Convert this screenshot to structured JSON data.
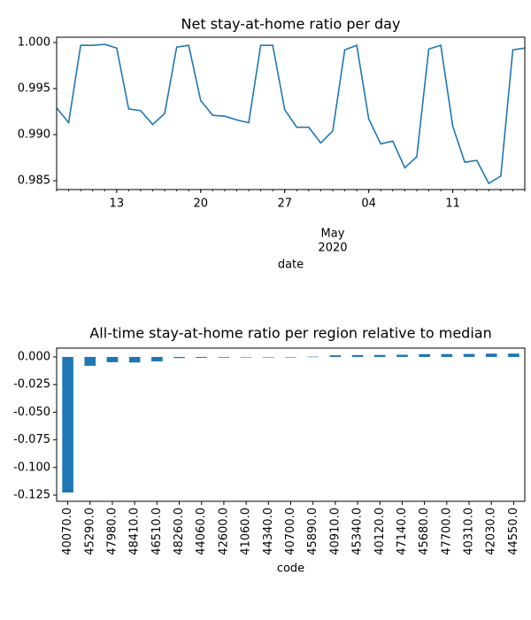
{
  "chart_data": [
    {
      "type": "line",
      "title": "Net stay-at-home ratio per day",
      "xlabel": "date",
      "x": [
        "2020-04-08",
        "2020-04-09",
        "2020-04-10",
        "2020-04-11",
        "2020-04-12",
        "2020-04-13",
        "2020-04-14",
        "2020-04-15",
        "2020-04-16",
        "2020-04-17",
        "2020-04-18",
        "2020-04-19",
        "2020-04-20",
        "2020-04-21",
        "2020-04-22",
        "2020-04-23",
        "2020-04-24",
        "2020-04-25",
        "2020-04-26",
        "2020-04-27",
        "2020-04-28",
        "2020-04-29",
        "2020-04-30",
        "2020-05-01",
        "2020-05-02",
        "2020-05-03",
        "2020-05-04",
        "2020-05-05",
        "2020-05-06",
        "2020-05-07",
        "2020-05-08",
        "2020-05-09",
        "2020-05-10",
        "2020-05-11",
        "2020-05-12",
        "2020-05-13",
        "2020-05-14",
        "2020-05-15",
        "2020-05-16",
        "2020-05-17"
      ],
      "values": [
        0.9929,
        0.9913,
        0.9997,
        0.9997,
        0.9998,
        0.9994,
        0.9928,
        0.9926,
        0.9911,
        0.9923,
        0.9995,
        0.9997,
        0.9937,
        0.9921,
        0.992,
        0.9916,
        0.9913,
        0.9997,
        0.9997,
        0.9927,
        0.9908,
        0.9908,
        0.9891,
        0.9904,
        0.9992,
        0.9997,
        0.9917,
        0.989,
        0.9893,
        0.9864,
        0.9876,
        0.9993,
        0.9997,
        0.9909,
        0.987,
        0.9872,
        0.9847,
        0.9855,
        0.9992,
        0.9994
      ],
      "color": "#1f77b4",
      "xlim": [
        "2020-04-08",
        "2020-05-17"
      ],
      "xticks": [
        {
          "value": "2020-04-13",
          "label": "13"
        },
        {
          "value": "2020-04-20",
          "label": "20"
        },
        {
          "value": "2020-04-27",
          "label": "27"
        },
        {
          "value": "2020-05-01",
          "label": [
            "May",
            "2020"
          ]
        },
        {
          "value": "2020-05-04",
          "label": "04"
        },
        {
          "value": "2020-05-11",
          "label": "11"
        }
      ],
      "ylim": [
        0.98404,
        1.00058
      ],
      "yticks": [
        {
          "value": 0.985,
          "label": "0.985"
        },
        {
          "value": 0.99,
          "label": "0.990"
        },
        {
          "value": 0.995,
          "label": "0.995"
        },
        {
          "value": 1.0,
          "label": "1.000"
        }
      ]
    },
    {
      "type": "bar",
      "title": "All-time stay-at-home ratio per region relative to median",
      "xlabel": "code",
      "categories": [
        "40070.0",
        "45290.0",
        "47980.0",
        "48410.0",
        "46510.0",
        "48260.0",
        "44060.0",
        "42600.0",
        "41060.0",
        "44340.0",
        "40700.0",
        "45890.0",
        "40910.0",
        "45340.0",
        "40120.0",
        "47140.0",
        "45680.0",
        "47700.0",
        "40310.0",
        "42030.0",
        "44550.0"
      ],
      "values": [
        -0.1226,
        -0.008,
        -0.0048,
        -0.005,
        -0.004,
        -0.001,
        -0.0008,
        -0.0006,
        0,
        0,
        0,
        0.0003,
        0.0015,
        0.0017,
        0.0018,
        0.002,
        0.0025,
        0.0026,
        0.0027,
        0.003,
        0.003
      ],
      "color": "#1f77b4",
      "ylim": [
        -0.1306,
        0.008
      ],
      "yticks": [
        {
          "value": -0.125,
          "label": "-0.125"
        },
        {
          "value": -0.1,
          "label": "-0.100"
        },
        {
          "value": -0.075,
          "label": "-0.075"
        },
        {
          "value": -0.05,
          "label": "-0.050"
        },
        {
          "value": -0.025,
          "label": "-0.025"
        },
        {
          "value": 0,
          "label": "0.000"
        }
      ]
    }
  ]
}
